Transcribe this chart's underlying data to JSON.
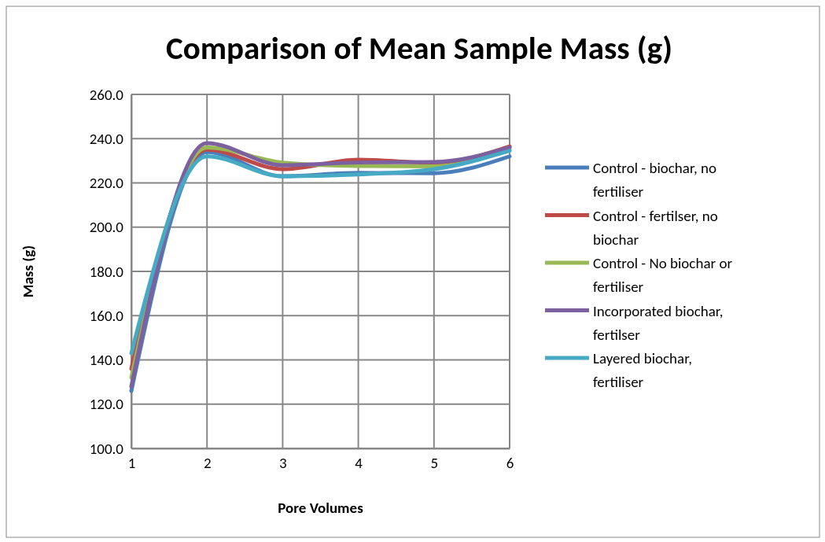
{
  "chart_data": {
    "type": "line",
    "title": "Comparison of Mean Sample Mass (g)",
    "xlabel": "Pore Volumes",
    "ylabel": "Mass (g)",
    "x": [
      1,
      2,
      3,
      4,
      5,
      6
    ],
    "xlim": [
      1,
      6
    ],
    "xticks": [
      1,
      2,
      3,
      4,
      5,
      6
    ],
    "ylim": [
      100,
      260
    ],
    "yticks": [
      {
        "value": 100,
        "label": "100.0"
      },
      {
        "value": 120,
        "label": "120.0"
      },
      {
        "value": 140,
        "label": "140.0"
      },
      {
        "value": 160,
        "label": "160.0"
      },
      {
        "value": 180,
        "label": "180.0"
      },
      {
        "value": 200,
        "label": "200.0"
      },
      {
        "value": 220,
        "label": "220.0"
      },
      {
        "value": 240,
        "label": "240.0"
      },
      {
        "value": 260,
        "label": "260.0"
      }
    ],
    "grid": true,
    "legend": "right",
    "marker": "none",
    "line_style": "solid",
    "series": [
      {
        "name": "Control - biochar, no fertiliser",
        "color": "#4a7ebb",
        "values": [
          126,
          234,
          223,
          224.5,
          224.4,
          232
        ]
      },
      {
        "name": "Control - fertilser, no biochar",
        "color": "#be4b48",
        "values": [
          136,
          235,
          226.2,
          230.5,
          229,
          236.5
        ]
      },
      {
        "name": "Control - No biochar or fertiliser",
        "color": "#98b954",
        "values": [
          132,
          236,
          229.2,
          227.6,
          227.5,
          235
        ]
      },
      {
        "name": "Incorporated biochar, fertilser",
        "color": "#7d60a0",
        "values": [
          128,
          238,
          228,
          229.2,
          229.4,
          236
        ]
      },
      {
        "name": "Layered biochar, fertiliser",
        "color": "#46aac5",
        "values": [
          143,
          232,
          223,
          223.8,
          226.2,
          234.5
        ]
      }
    ]
  }
}
